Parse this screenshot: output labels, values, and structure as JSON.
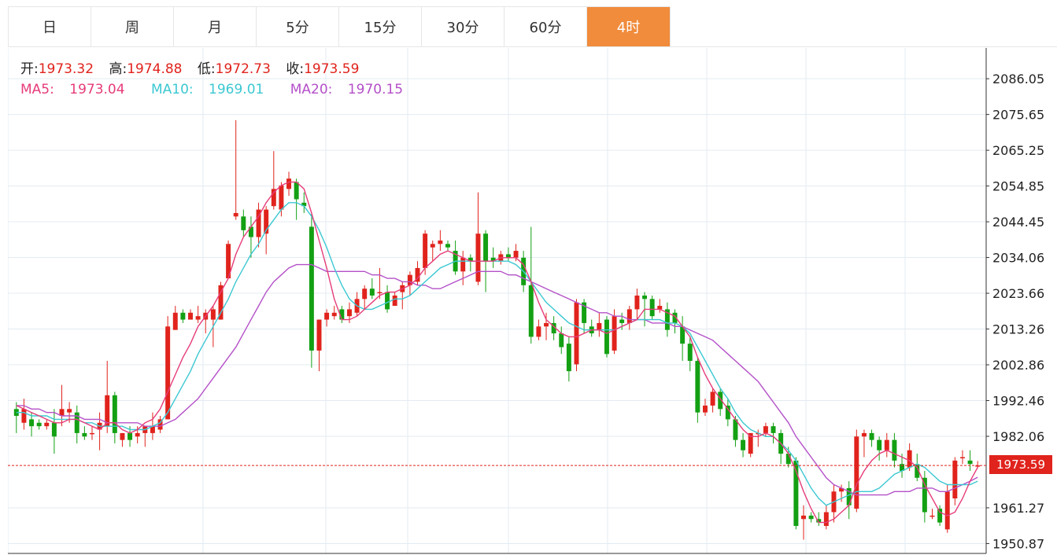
{
  "tabs": [
    {
      "label": "日",
      "active": false
    },
    {
      "label": "周",
      "active": false
    },
    {
      "label": "月",
      "active": false
    },
    {
      "label": "5分",
      "active": false
    },
    {
      "label": "15分",
      "active": false
    },
    {
      "label": "30分",
      "active": false
    },
    {
      "label": "60分",
      "active": false
    },
    {
      "label": "4时",
      "active": true
    }
  ],
  "info": {
    "open_label": "开:",
    "open": "1973.32",
    "high_label": "高:",
    "high": "1974.88",
    "low_label": "低:",
    "low": "1972.73",
    "close_label": "收:",
    "close": "1973.59"
  },
  "ma": {
    "ma5_label": "MA5:",
    "ma5": "1973.04",
    "ma10_label": "MA10:",
    "ma10": "1969.01",
    "ma20_label": "MA20:",
    "ma20": "1970.15"
  },
  "current_price": "1973.59",
  "colors": {
    "up": "#e0231c",
    "down": "#13a013",
    "accent": "#f08c3c",
    "ma5": "#e63c7a",
    "ma10": "#3cc8d2",
    "ma20": "#b450c8",
    "grid": "#e3ebf2"
  },
  "chart_data": {
    "type": "candlestick",
    "ylim": [
      1948,
      2095
    ],
    "y_ticks": [
      "2086.05",
      "2075.65",
      "2065.25",
      "2054.85",
      "2044.45",
      "2034.06",
      "2023.66",
      "2013.26",
      "2002.86",
      "1992.46",
      "1982.06",
      "1961.27",
      "1950.87"
    ],
    "last_price": 1973.59,
    "grid": true,
    "candles": [
      [
        1990,
        1988,
        1992,
        1983
      ],
      [
        1986,
        1990,
        1993,
        1984
      ],
      [
        1987,
        1985,
        1989,
        1982
      ],
      [
        1986,
        1985,
        1987,
        1984
      ],
      [
        1985,
        1986,
        1987,
        1984
      ],
      [
        1986,
        1982,
        1990,
        1977
      ],
      [
        1988,
        1990,
        1997,
        1985
      ],
      [
        1989,
        1990,
        1992,
        1986
      ],
      [
        1989,
        1983,
        1991,
        1980
      ],
      [
        1983,
        1982,
        1985,
        1981
      ],
      [
        1983,
        1983,
        1985,
        1981
      ],
      [
        1984,
        1986,
        1989,
        1978
      ],
      [
        1985,
        1994,
        2004,
        1983
      ],
      [
        1994,
        1983,
        1995,
        1980
      ],
      [
        1981,
        1983,
        1983,
        1979
      ],
      [
        1983,
        1981,
        1985,
        1979
      ],
      [
        1982,
        1983,
        1985,
        1980
      ],
      [
        1983,
        1985,
        1985,
        1979
      ],
      [
        1983,
        1985,
        1989,
        1981
      ],
      [
        1984,
        1987,
        1988,
        1983
      ],
      [
        1987,
        2014,
        2017,
        1987
      ],
      [
        2013,
        2018,
        2020,
        2013
      ],
      [
        2018,
        2016,
        2019,
        2015
      ],
      [
        2016,
        2018,
        2019,
        2016
      ],
      [
        2016,
        2017,
        2020,
        2015
      ],
      [
        2016,
        2018,
        2019,
        2012
      ],
      [
        2016,
        2019,
        2020,
        2008
      ],
      [
        2016,
        2026,
        2027,
        2016
      ],
      [
        2028,
        2038,
        2039,
        2028
      ],
      [
        2046,
        2047,
        2074,
        2045
      ],
      [
        2046,
        2042,
        2048,
        2040
      ],
      [
        2043,
        2040,
        2046,
        2034
      ],
      [
        2040,
        2048,
        2050,
        2037
      ],
      [
        2041,
        2048,
        2049,
        2035
      ],
      [
        2049,
        2054,
        2065,
        2048
      ],
      [
        2048,
        2055,
        2056,
        2046
      ],
      [
        2054,
        2057,
        2059,
        2052
      ],
      [
        2056,
        2051,
        2057,
        2045
      ],
      [
        2050,
        2049,
        2053,
        2047
      ],
      [
        2043,
        2007,
        2047,
        2002
      ],
      [
        2007,
        2016,
        2016,
        2001
      ],
      [
        2016,
        2018,
        2019,
        2014
      ],
      [
        2017,
        2018,
        2020,
        2016
      ],
      [
        2019,
        2016,
        2020,
        2015
      ],
      [
        2017,
        2019,
        2021,
        2015
      ],
      [
        2018,
        2022,
        2024,
        2017
      ],
      [
        2022,
        2025,
        2026,
        2019
      ],
      [
        2025,
        2023,
        2028,
        2022
      ],
      [
        2024,
        2024,
        2031,
        2022
      ],
      [
        2024,
        2019,
        2026,
        2018
      ],
      [
        2020,
        2023,
        2024,
        2020
      ],
      [
        2024,
        2026,
        2027,
        2019
      ],
      [
        2026,
        2029,
        2030,
        2023
      ],
      [
        2027,
        2031,
        2033,
        2026
      ],
      [
        2031,
        2041,
        2042,
        2029
      ],
      [
        2037,
        2038,
        2039,
        2033
      ],
      [
        2038,
        2039,
        2042,
        2036
      ],
      [
        2038,
        2037,
        2039,
        2036
      ],
      [
        2036,
        2030,
        2039,
        2029
      ],
      [
        2030,
        2034,
        2036,
        2026
      ],
      [
        2034,
        2033,
        2035,
        2030
      ],
      [
        2027,
        2041,
        2053,
        2026
      ],
      [
        2041,
        2033,
        2042,
        2024
      ],
      [
        2034,
        2033,
        2037,
        2031
      ],
      [
        2033,
        2035,
        2036,
        2032
      ],
      [
        2035,
        2034,
        2037,
        2033
      ],
      [
        2034,
        2036,
        2038,
        2033
      ],
      [
        2034,
        2026,
        2036,
        2024
      ],
      [
        2026,
        2011,
        2043,
        2009
      ],
      [
        2011,
        2014,
        2016,
        2010
      ],
      [
        2014,
        2015,
        2018,
        2010
      ],
      [
        2015,
        2012,
        2017,
        2010
      ],
      [
        2012,
        2008,
        2014,
        2006
      ],
      [
        2009,
        2001,
        2011,
        1998
      ],
      [
        2003,
        2021,
        2022,
        2001
      ],
      [
        2021,
        2015,
        2022,
        2012
      ],
      [
        2014,
        2012,
        2016,
        2011
      ],
      [
        2013,
        2015,
        2018,
        2011
      ],
      [
        2016,
        2006,
        2017,
        2005
      ],
      [
        2007,
        2017,
        2019,
        2006
      ],
      [
        2016,
        2015,
        2018,
        2013
      ],
      [
        2015,
        2019,
        2020,
        2013
      ],
      [
        2019,
        2023,
        2025,
        2016
      ],
      [
        2023,
        2022,
        2024,
        2014
      ],
      [
        2022,
        2017,
        2023,
        2016
      ],
      [
        2019,
        2020,
        2022,
        2018
      ],
      [
        2019,
        2013,
        2021,
        2011
      ],
      [
        2018,
        2015,
        2019,
        2012
      ],
      [
        2014,
        2009,
        2017,
        2004
      ],
      [
        2009,
        2004,
        2011,
        2001
      ],
      [
        2004,
        1989,
        2005,
        1986
      ],
      [
        1989,
        1991,
        1993,
        1988
      ],
      [
        1991,
        1995,
        1996,
        1989
      ],
      [
        1995,
        1990,
        1996,
        1988
      ],
      [
        1991,
        1987,
        1993,
        1985
      ],
      [
        1987,
        1981,
        1988,
        1979
      ],
      [
        1981,
        1978,
        1983,
        1976
      ],
      [
        1977,
        1983,
        1983,
        1976
      ],
      [
        1983,
        1983,
        1984,
        1979
      ],
      [
        1983,
        1985,
        1986,
        1982
      ],
      [
        1985,
        1983,
        1986,
        1980
      ],
      [
        1983,
        1977,
        1984,
        1974
      ],
      [
        1977,
        1974,
        1979,
        1973
      ],
      [
        1975,
        1956,
        1976,
        1955
      ],
      [
        1958,
        1959,
        1962,
        1952
      ],
      [
        1959,
        1958,
        1960,
        1957
      ],
      [
        1958,
        1957,
        1960,
        1956
      ],
      [
        1956,
        1960,
        1962,
        1955
      ],
      [
        1960,
        1966,
        1968,
        1957
      ],
      [
        1966,
        1967,
        1968,
        1963
      ],
      [
        1967,
        1962,
        1969,
        1958
      ],
      [
        1961,
        1982,
        1984,
        1960
      ],
      [
        1982,
        1983,
        1984,
        1976
      ],
      [
        1983,
        1981,
        1984,
        1979
      ],
      [
        1981,
        1978,
        1982,
        1975
      ],
      [
        1978,
        1981,
        1983,
        1976
      ],
      [
        1981,
        1975,
        1983,
        1973
      ],
      [
        1974,
        1972,
        1977,
        1970
      ],
      [
        1973,
        1978,
        1980,
        1972
      ],
      [
        1974,
        1970,
        1977,
        1969
      ],
      [
        1970,
        1960,
        1972,
        1957
      ],
      [
        1959,
        1959,
        1961,
        1958
      ],
      [
        1961,
        1957,
        1962,
        1956
      ],
      [
        1955,
        1966,
        1968,
        1954
      ],
      [
        1964,
        1975,
        1976,
        1962
      ],
      [
        1976,
        1976,
        1978,
        1974
      ],
      [
        1975,
        1974,
        1978,
        1972
      ],
      [
        1973.32,
        1973.59,
        1974.88,
        1972.73
      ]
    ],
    "ma5": [
      1991,
      1990,
      1989,
      1988,
      1987,
      1986,
      1986,
      1987,
      1987,
      1986,
      1985,
      1984,
      1986,
      1986,
      1984,
      1983,
      1984,
      1986,
      1987,
      1990,
      1995,
      2000,
      2005,
      2009,
      2014,
      2017,
      2020,
      2024,
      2028,
      2035,
      2040,
      2043,
      2046,
      2050,
      2053,
      2055,
      2056,
      2056,
      2054,
      2047,
      2039,
      2031,
      2022,
      2016,
      2016,
      2017,
      2019,
      2021,
      2023,
      2024,
      2024,
      2025,
      2026,
      2028,
      2031,
      2033,
      2035,
      2036,
      2035,
      2034,
      2033,
      2033,
      2033,
      2033,
      2034,
      2034,
      2034,
      2032,
      2027,
      2021,
      2016,
      2014,
      2012,
      2011,
      2011,
      2012,
      2013,
      2013,
      2012,
      2013,
      2014,
      2015,
      2016,
      2019,
      2019,
      2019,
      2018,
      2017,
      2014,
      2011,
      2005,
      2000,
      1996,
      1993,
      1990,
      1987,
      1984,
      1982,
      1982,
      1983,
      1982,
      1980,
      1977,
      1972,
      1966,
      1961,
      1957,
      1957,
      1958,
      1960,
      1962,
      1968,
      1972,
      1975,
      1977,
      1978,
      1977,
      1976,
      1975,
      1973,
      1968,
      1964,
      1960,
      1959,
      1960,
      1964,
      1969,
      1973.04
    ],
    "ma10": [
      1989,
      1989,
      1988,
      1988,
      1988,
      1987,
      1987,
      1987,
      1987,
      1986,
      1986,
      1985,
      1985,
      1985,
      1985,
      1984,
      1984,
      1984,
      1985,
      1986,
      1989,
      1993,
      1997,
      2001,
      2006,
      2010,
      2014,
      2018,
      2022,
      2027,
      2031,
      2035,
      2038,
      2042,
      2045,
      2048,
      2050,
      2050,
      2049,
      2046,
      2042,
      2037,
      2031,
      2026,
      2022,
      2020,
      2019,
      2019,
      2020,
      2021,
      2022,
      2022,
      2023,
      2025,
      2027,
      2029,
      2031,
      2032,
      2033,
      2033,
      2033,
      2033,
      2033,
      2033,
      2033,
      2033,
      2032,
      2030,
      2027,
      2024,
      2021,
      2019,
      2017,
      2015,
      2014,
      2013,
      2013,
      2013,
      2013,
      2013,
      2014,
      2015,
      2016,
      2016,
      2016,
      2016,
      2015,
      2015,
      2014,
      2012,
      2008,
      2004,
      2000,
      1996,
      1993,
      1989,
      1986,
      1984,
      1983,
      1982,
      1982,
      1980,
      1978,
      1975,
      1971,
      1967,
      1964,
      1962,
      1963,
      1964,
      1965,
      1966,
      1966,
      1966,
      1967,
      1969,
      1971,
      1972,
      1973,
      1974,
      1973,
      1971,
      1969,
      1968,
      1968,
      1968,
      1968,
      1969.01
    ],
    "ma20": [
      1991,
      1991,
      1990,
      1990,
      1989,
      1989,
      1988,
      1988,
      1988,
      1987,
      1987,
      1987,
      1986,
      1986,
      1986,
      1986,
      1986,
      1985,
      1985,
      1985,
      1986,
      1987,
      1989,
      1991,
      1993,
      1996,
      1999,
      2002,
      2005,
      2008,
      2012,
      2016,
      2020,
      2024,
      2027,
      2029,
      2031,
      2032,
      2032,
      2032,
      2031,
      2030,
      2030,
      2030,
      2030,
      2030,
      2030,
      2029,
      2029,
      2028,
      2028,
      2027,
      2027,
      2026,
      2026,
      2025,
      2025,
      2026,
      2027,
      2028,
      2029,
      2030,
      2030,
      2030,
      2030,
      2029,
      2029,
      2028,
      2027,
      2026,
      2025,
      2024,
      2023,
      2022,
      2021,
      2020,
      2019,
      2018,
      2018,
      2017,
      2017,
      2016,
      2016,
      2016,
      2015,
      2015,
      2015,
      2014,
      2014,
      2013,
      2012,
      2011,
      2010,
      2008,
      2006,
      2004,
      2002,
      2000,
      1998,
      1995,
      1992,
      1989,
      1986,
      1982,
      1979,
      1976,
      1973,
      1970,
      1968,
      1967,
      1966,
      1965,
      1965,
      1965,
      1965,
      1965,
      1966,
      1966,
      1966,
      1967,
      1967,
      1967,
      1966,
      1966,
      1967,
      1968,
      1969,
      1970.15
    ]
  }
}
